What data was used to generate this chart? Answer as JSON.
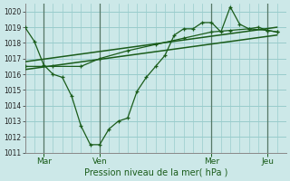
{
  "background_color": "#cce8e8",
  "grid_color": "#99cccc",
  "line_color": "#1a5c1a",
  "x_tick_labels": [
    "Mar",
    "Ven",
    "Mer",
    "Jeu"
  ],
  "xlabel": "Pression niveau de la mer( hPa )",
  "ylim": [
    1011,
    1020.5
  ],
  "yticks": [
    1011,
    1012,
    1013,
    1014,
    1015,
    1016,
    1017,
    1018,
    1019,
    1020
  ],
  "xlim": [
    0,
    14.0
  ],
  "vline_positions": [
    1.0,
    4.0,
    10.0,
    13.0
  ],
  "xtick_positions": [
    1.0,
    4.0,
    10.0,
    13.0
  ],
  "series1_x": [
    0.0,
    0.5,
    1.0,
    1.5,
    2.0,
    2.5,
    3.0,
    3.5,
    4.0,
    4.5,
    5.0,
    5.5,
    6.0,
    6.5,
    7.0,
    7.5,
    8.0,
    8.5,
    9.0,
    9.5,
    10.0,
    10.5,
    11.0,
    11.5,
    12.0,
    12.5,
    13.0,
    13.5
  ],
  "series1_y": [
    1019.0,
    1018.1,
    1016.6,
    1016.0,
    1015.8,
    1014.6,
    1012.7,
    1011.5,
    1011.5,
    1012.5,
    1013.0,
    1013.2,
    1014.9,
    1015.8,
    1016.5,
    1017.2,
    1018.5,
    1018.9,
    1018.9,
    1019.3,
    1019.3,
    1018.7,
    1020.3,
    1019.2,
    1018.9,
    1019.0,
    1018.8,
    1018.7
  ],
  "series2_x": [
    0.0,
    1.5,
    3.0,
    4.0,
    5.5,
    7.0,
    8.5,
    10.0,
    11.0,
    12.0,
    13.0,
    13.5
  ],
  "series2_y": [
    1016.5,
    1016.5,
    1016.5,
    1017.0,
    1017.5,
    1017.9,
    1018.3,
    1018.7,
    1018.8,
    1018.9,
    1018.8,
    1018.7
  ],
  "series3_x": [
    0.0,
    13.5
  ],
  "series3_y": [
    1016.3,
    1018.5
  ],
  "series4_x": [
    0.0,
    13.5
  ],
  "series4_y": [
    1016.8,
    1019.0
  ]
}
